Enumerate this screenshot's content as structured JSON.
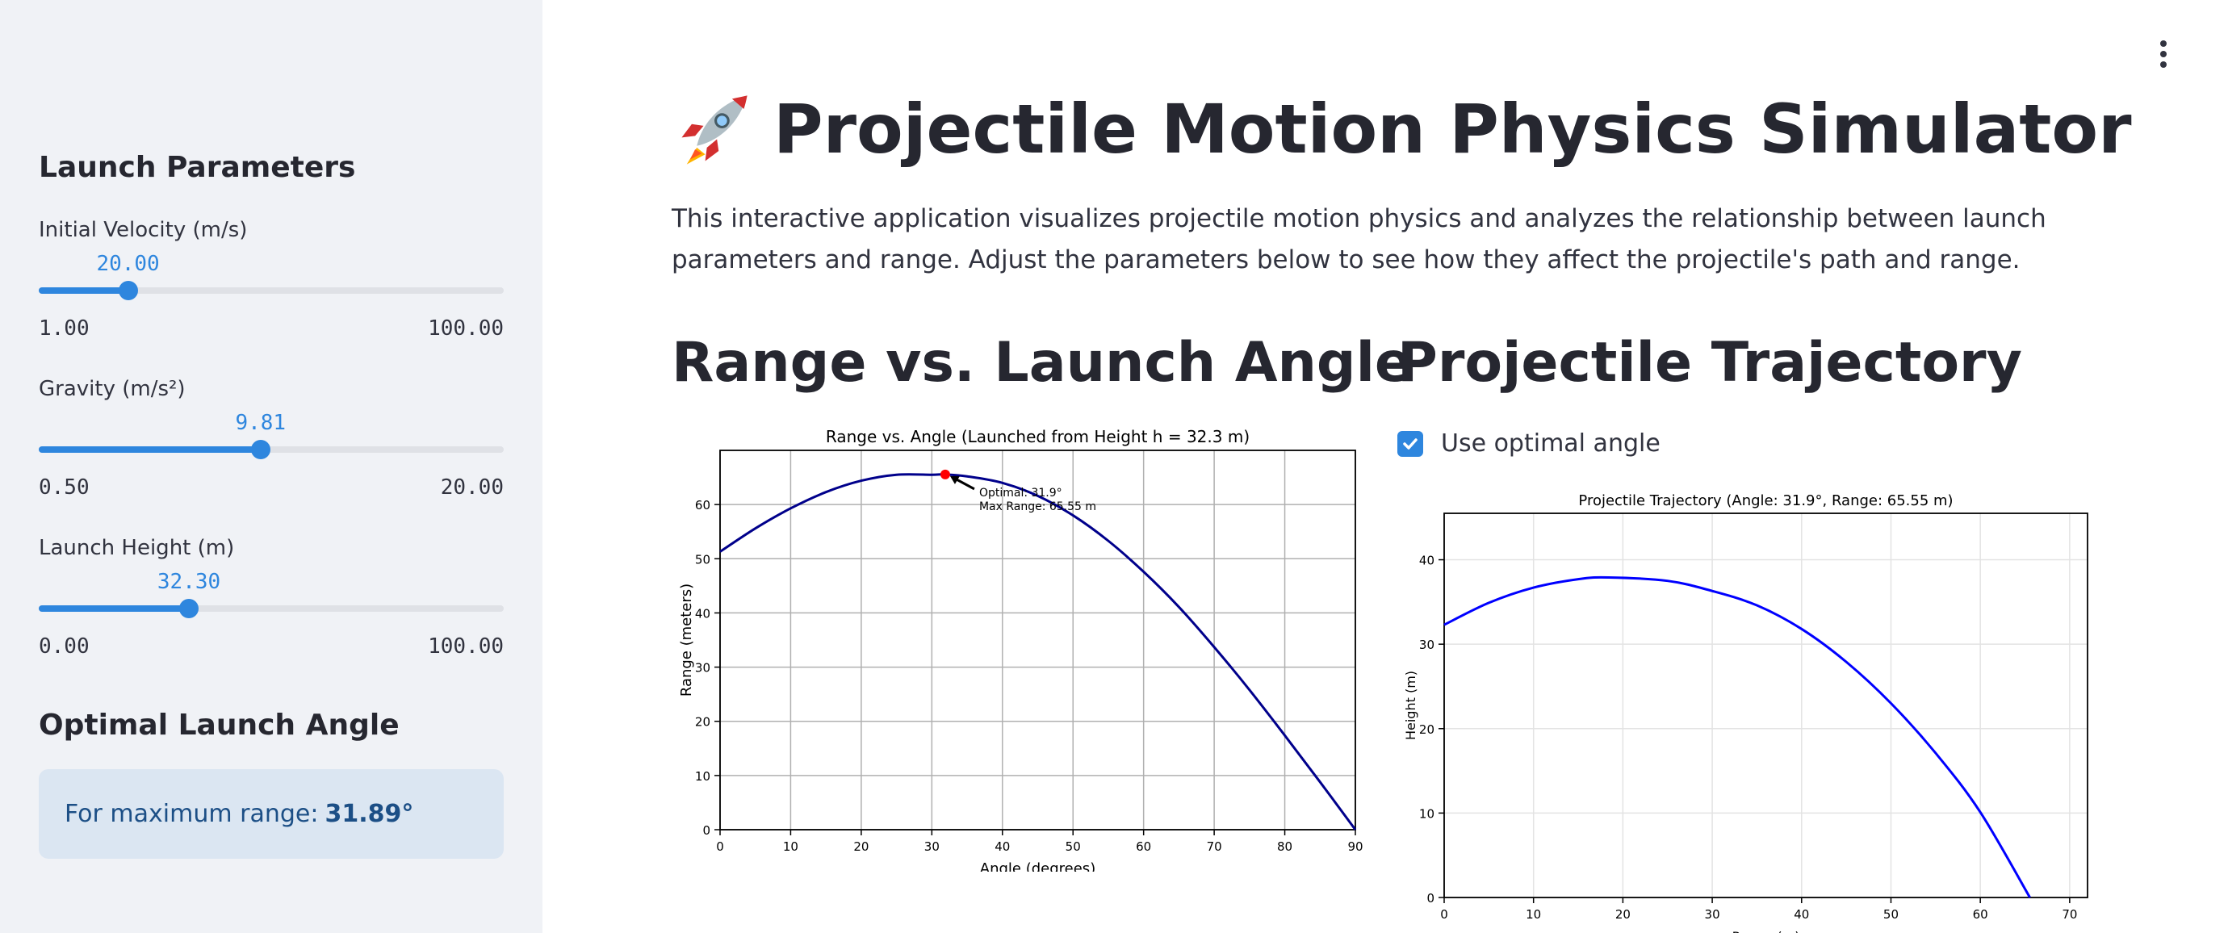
{
  "sidebar": {
    "launch_params_header": "Launch Parameters",
    "sliders": [
      {
        "label": "Initial Velocity (m/s)",
        "value": "20.00",
        "min": "1.00",
        "max": "100.00",
        "fraction": 0.192
      },
      {
        "label": "Gravity (m/s²)",
        "value": "9.81",
        "min": "0.50",
        "max": "20.00",
        "fraction": 0.477
      },
      {
        "label": "Launch Height (m)",
        "value": "32.30",
        "min": "0.00",
        "max": "100.00",
        "fraction": 0.323
      }
    ],
    "optimal_header": "Optimal Launch Angle",
    "info_prefix": "For maximum range:",
    "info_value": "31.89°"
  },
  "main": {
    "title": "Projectile Motion Physics Simulator",
    "title_icon": "rocket-icon",
    "intro": "This interactive application visualizes projectile motion physics and analyzes the relationship between launch parameters and range. Adjust the parameters below to see how they affect the projectile's path and range.",
    "section_range_title": "Range vs. Launch Angle",
    "section_traj_title": "Projectile Trajectory",
    "checkbox_label": "Use optimal angle",
    "checkbox_checked": true,
    "menu_icon": "kebab-menu-icon"
  },
  "colors": {
    "accent": "#2e86de",
    "sidebar_bg": "#f0f2f6",
    "info_bg": "#dbe6f2",
    "info_text": "#1c4f86",
    "range_curve": "#00008b",
    "trajectory_curve": "#0000ff",
    "optimal_marker": "#ff0000"
  },
  "chart_data": [
    {
      "type": "line",
      "title": "Range vs. Angle (Launched from Height h = 32.3 m)",
      "xlabel": "Angle (degrees)",
      "ylabel": "Range (meters)",
      "xlim": [
        0,
        90
      ],
      "ylim": [
        0,
        70
      ],
      "xticks": [
        0,
        10,
        20,
        30,
        40,
        50,
        60,
        70,
        80,
        90
      ],
      "yticks": [
        0,
        10,
        20,
        30,
        40,
        50,
        60
      ],
      "grid": true,
      "series": [
        {
          "x": [
            0,
            5,
            10,
            15,
            20,
            25,
            30,
            31.9,
            35,
            40,
            45,
            50,
            55,
            60,
            65,
            70,
            75,
            80,
            85,
            90
          ],
          "y": [
            51.3,
            55.6,
            59.3,
            62.3,
            64.4,
            65.5,
            65.5,
            65.55,
            65.2,
            64.0,
            61.6,
            58.0,
            53.3,
            47.6,
            41.1,
            33.7,
            25.8,
            17.4,
            8.8,
            0
          ]
        }
      ],
      "annotation": {
        "x": 31.9,
        "y": 65.55,
        "text_lines": [
          "Optimal: 31.9°",
          "Max Range: 65.55 m"
        ]
      }
    },
    {
      "type": "line",
      "title": "Projectile Trajectory (Angle: 31.9°, Range: 65.55 m)",
      "xlabel": "Range (m)",
      "ylabel": "Height (m)",
      "xlim": [
        0,
        72
      ],
      "ylim": [
        0,
        45.5
      ],
      "xticks": [
        0,
        10,
        20,
        30,
        40,
        50,
        60,
        70
      ],
      "yticks": [
        0,
        10,
        20,
        30,
        40
      ],
      "grid": true,
      "series": [
        {
          "x": [
            0,
            5,
            10,
            15,
            18.4,
            25,
            30,
            35,
            40,
            45,
            50,
            55,
            60,
            65.55
          ],
          "y": [
            32.3,
            34.9,
            36.7,
            37.7,
            37.9,
            37.5,
            36.3,
            34.6,
            31.8,
            27.9,
            23.0,
            17.1,
            10.1,
            0
          ]
        }
      ]
    }
  ]
}
